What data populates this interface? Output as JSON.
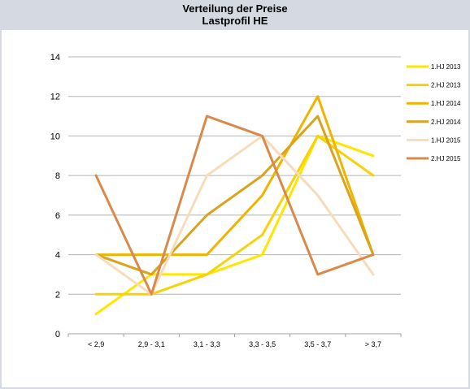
{
  "chart_data": {
    "type": "line",
    "title": "Verteilung der Preise",
    "subtitle": "Lastprofil HE",
    "xlabel": "",
    "ylabel": "",
    "categories": [
      "< 2,9",
      "2,9 - 3,1",
      "3,1 - 3,3",
      "3,3 - 3,5",
      "3,5 - 3,7",
      "> 3,7"
    ],
    "ylim": [
      0,
      14
    ],
    "yticks": [
      0,
      2,
      4,
      6,
      8,
      10,
      12,
      14
    ],
    "grid": "horizontal",
    "legend_position": "right",
    "series": [
      {
        "name": "1.HJ 2013",
        "color": "#ffe600",
        "values": [
          1,
          3,
          3,
          4,
          10,
          9
        ]
      },
      {
        "name": "2.HJ 2013",
        "color": "#f5d20a",
        "values": [
          2,
          2,
          3,
          5,
          10,
          8
        ]
      },
      {
        "name": "1.HJ 2014",
        "color": "#f0b400",
        "values": [
          4,
          4,
          4,
          7,
          12,
          4
        ]
      },
      {
        "name": "2.HJ 2014",
        "color": "#d9a31e",
        "values": [
          4,
          3,
          6,
          8,
          11,
          4
        ]
      },
      {
        "name": "1.HJ 2015",
        "color": "#f7dcbc",
        "values": [
          4,
          2,
          8,
          10,
          7,
          3
        ]
      },
      {
        "name": "2.HJ 2015",
        "color": "#d9894a",
        "values": [
          8,
          2,
          11,
          10,
          3,
          4
        ]
      }
    ]
  }
}
